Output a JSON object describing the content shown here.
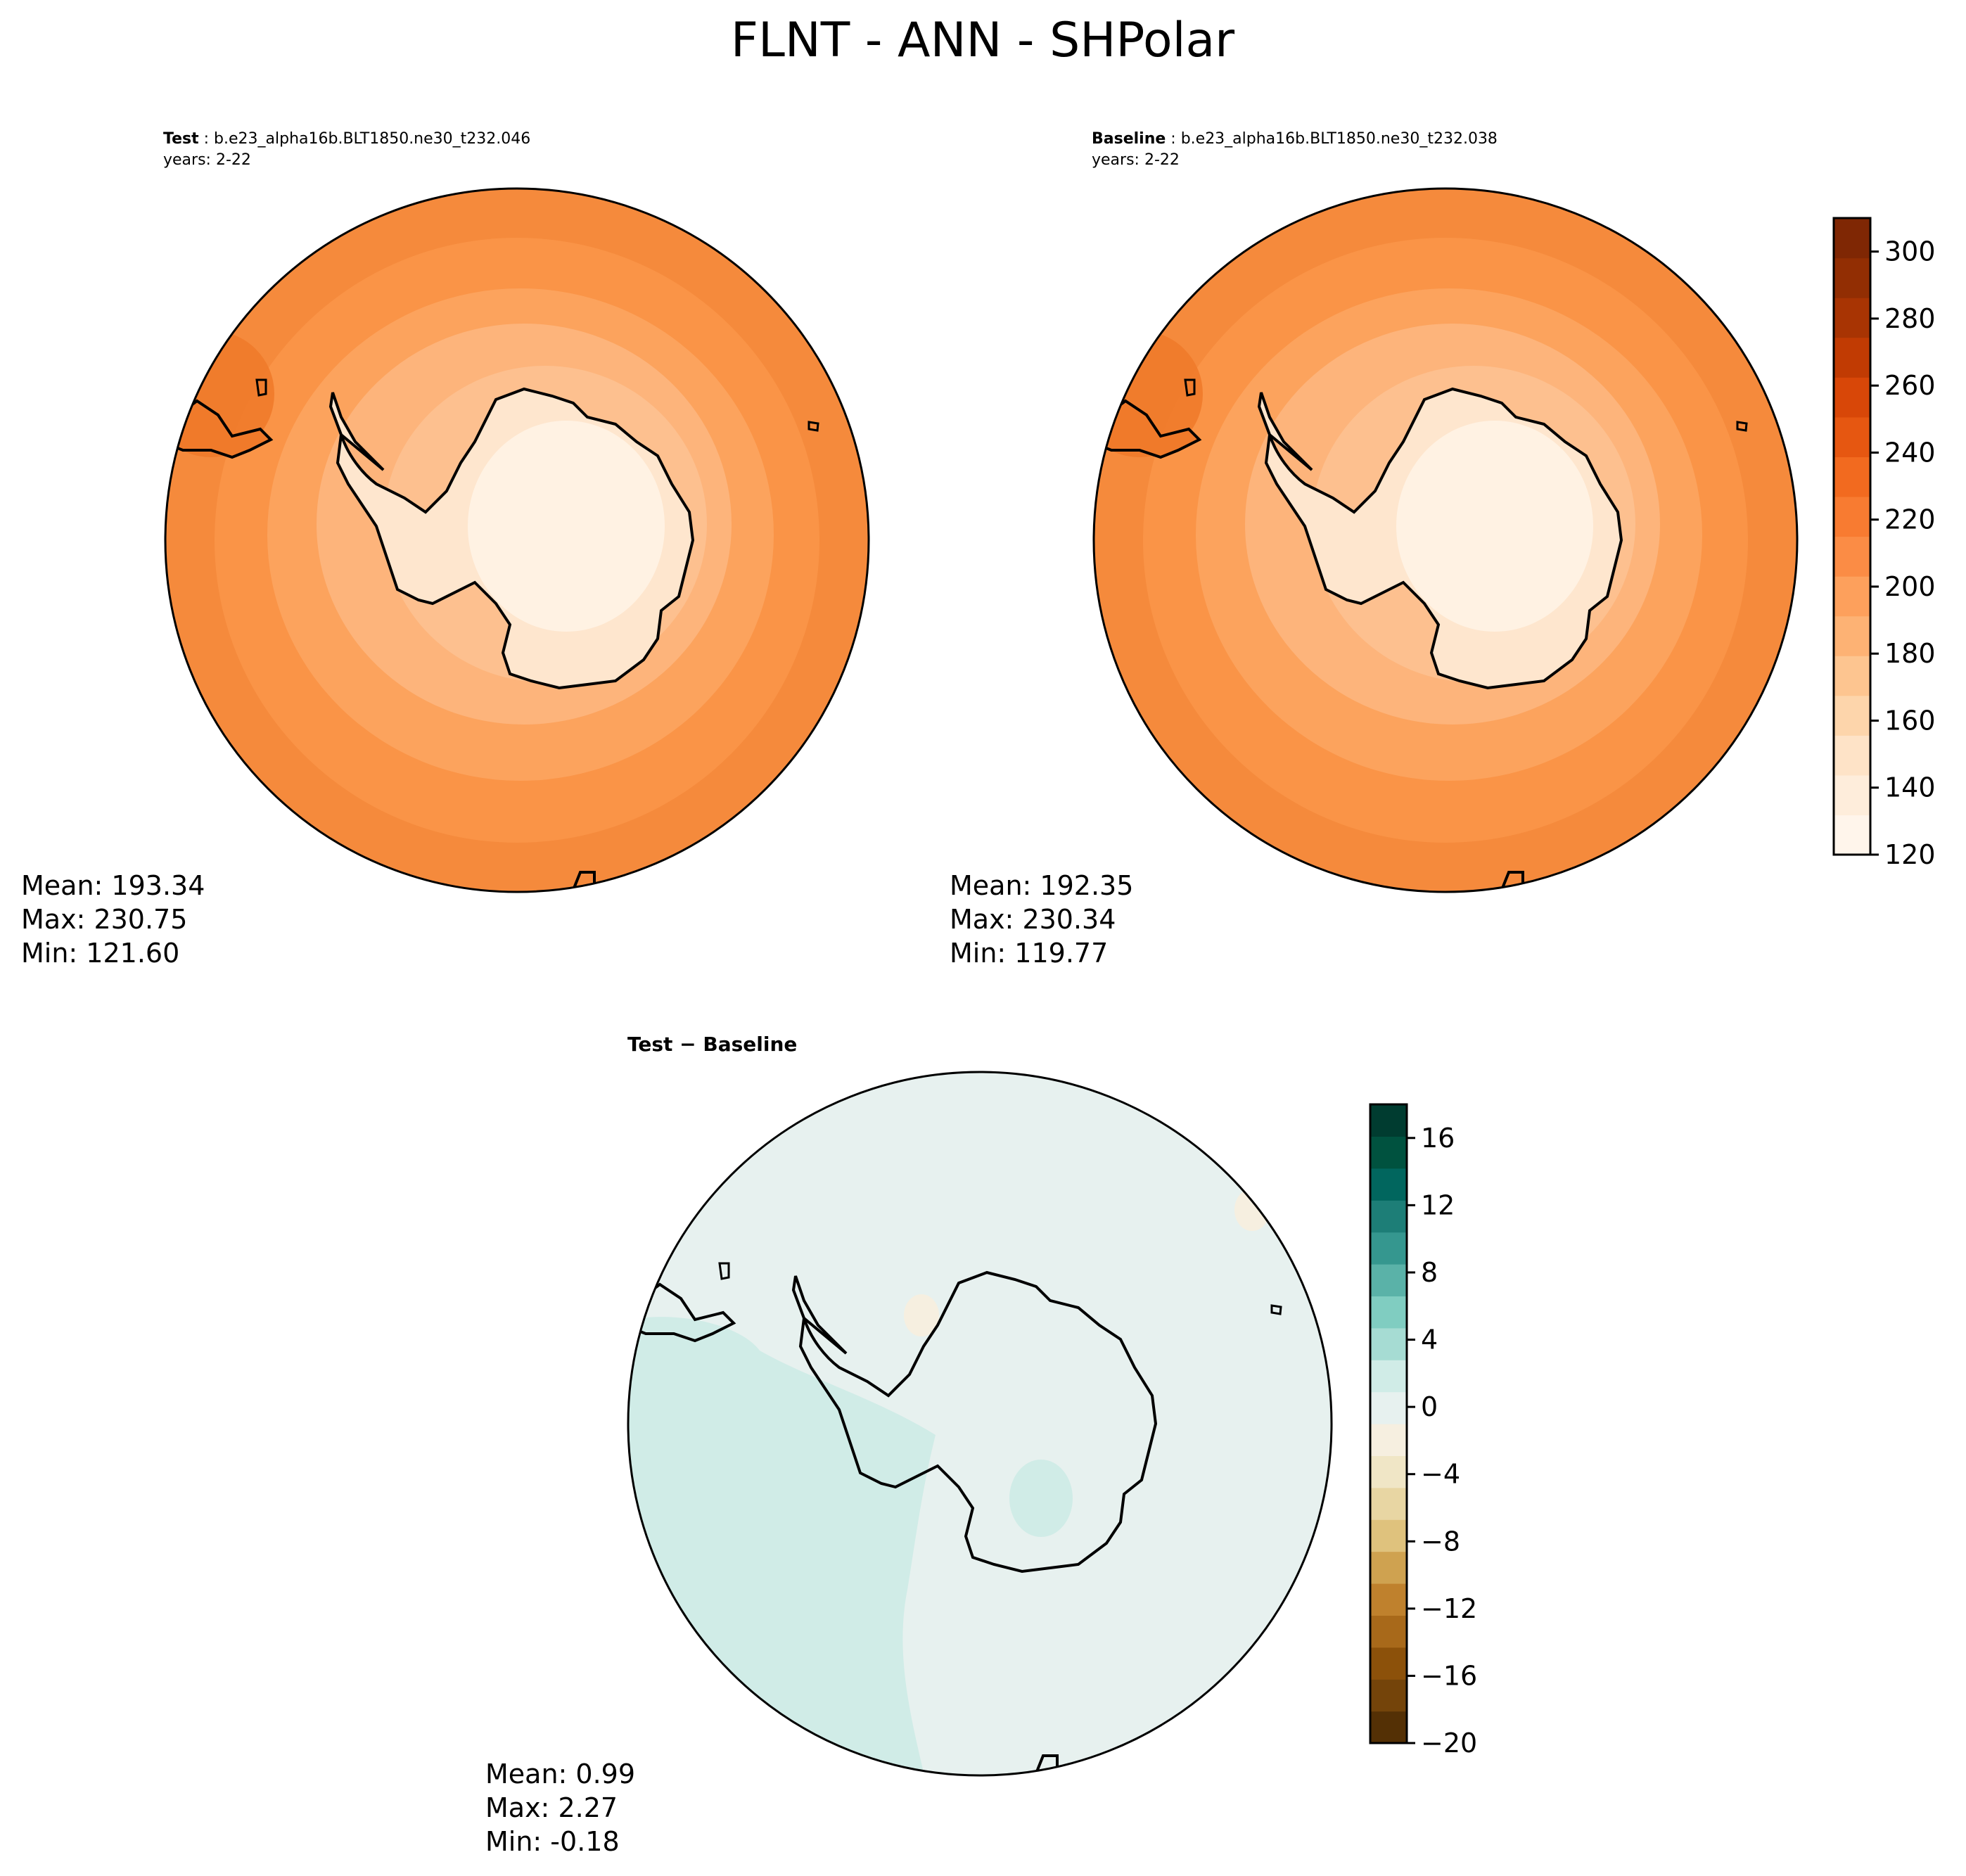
{
  "figure": {
    "title": "FLNT - ANN - SHPolar"
  },
  "panels": [
    {
      "id": "test",
      "label_bold": "Test",
      "label_rest": " : b.e23_alpha16b.BLT1850.ne30_t232.046",
      "years": "years: 2-22",
      "stats": {
        "mean": "Mean: 193.34",
        "max": "Max: 230.75",
        "min": "Min: 121.60"
      },
      "fill_colors": [
        "#fa8b3b",
        "#fba15a",
        "#fdb47b",
        "#fdd0a2",
        "#fee6ce"
      ]
    },
    {
      "id": "baseline",
      "label_bold": "Baseline",
      "label_rest": " : b.e23_alpha16b.BLT1850.ne30_t232.038",
      "years": "years: 2-22",
      "stats": {
        "mean": "Mean: 192.35",
        "max": "Max: 230.34",
        "min": "Min: 119.77"
      },
      "fill_colors": [
        "#fa8b3b",
        "#fba15a",
        "#fdb47b",
        "#fdd0a2",
        "#fee6ce"
      ]
    },
    {
      "id": "diff",
      "label_bold": "Test − Baseline",
      "label_rest": "",
      "years": "",
      "stats": {
        "mean": "Mean:  0.99",
        "max": "Max:  2.27",
        "min": "Min: -0.18"
      },
      "fill_colors": [
        "#e7f1ef",
        "#d0ece7",
        "#f6efe0"
      ]
    }
  ],
  "colorbars": [
    {
      "id": "main-colorbar",
      "colors": [
        "#fff5eb",
        "#feeddb",
        "#fee3c7",
        "#fdd5ab",
        "#fdc590",
        "#fdb274",
        "#fda05c",
        "#fb8c45",
        "#f87b31",
        "#f26a1f",
        "#e65711",
        "#d84708",
        "#c13b03",
        "#a83403",
        "#922e03",
        "#7f2704"
      ],
      "ticks": [
        "120",
        "140",
        "160",
        "180",
        "200",
        "220",
        "240",
        "260",
        "280",
        "300"
      ]
    },
    {
      "id": "diff-colorbar",
      "colors": [
        "#543005",
        "#74440a",
        "#8c510a",
        "#a8691a",
        "#bf812d",
        "#cfa250",
        "#dfc27d",
        "#e8d6a3",
        "#f0e6c6",
        "#f6efe0",
        "#e7f1ef",
        "#d0ece7",
        "#a6dcd3",
        "#80cdc1",
        "#5ab2a8",
        "#35978f",
        "#1d7e77",
        "#01665e",
        "#00523f",
        "#003c30"
      ],
      "ticks": [
        "−20",
        "−16",
        "−12",
        "−8",
        "−4",
        "0",
        "4",
        "8",
        "12",
        "16"
      ]
    }
  ]
}
